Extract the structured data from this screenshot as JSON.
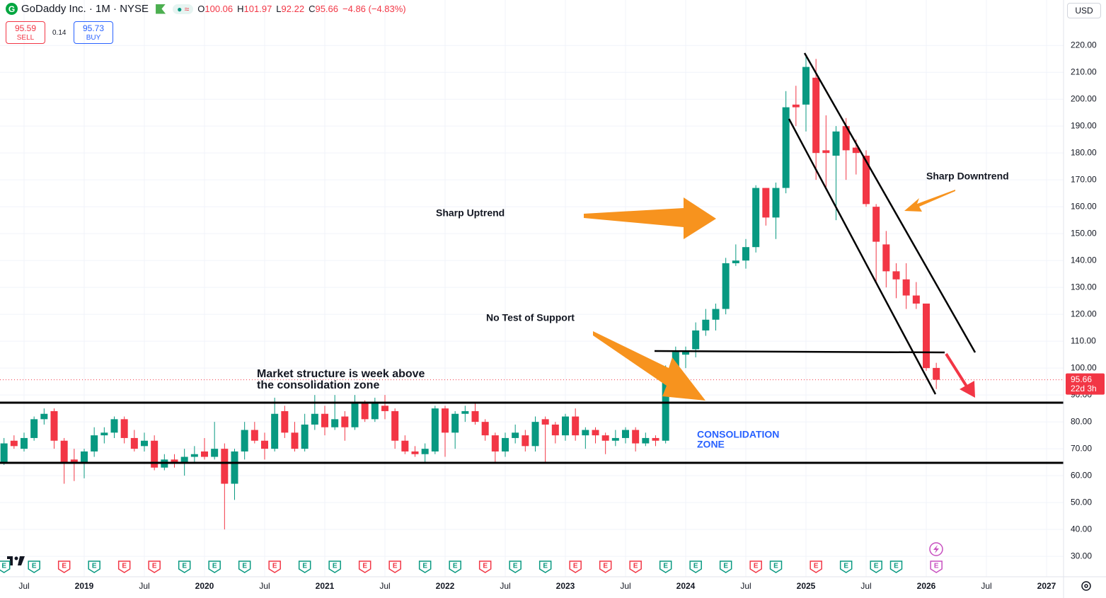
{
  "header": {
    "symbol": "GoDaddy Inc. · 1M · NYSE",
    "ohlc": [
      {
        "label": "O",
        "value": "100.06"
      },
      {
        "label": "H",
        "value": "101.97"
      },
      {
        "label": "L",
        "value": "92.22"
      },
      {
        "label": "C",
        "value": "95.66"
      }
    ],
    "change": "−4.86 (−4.83%)",
    "sell_price": "95.59",
    "sell_label": "SELL",
    "spread": "0.14",
    "buy_price": "95.73",
    "buy_label": "BUY",
    "currency": "USD"
  },
  "annotations": {
    "uptrend": "Sharp Uptrend",
    "downtrend": "Sharp Downtrend",
    "no_test": "No Test of Support",
    "structure": [
      "Market structure is week above",
      "the consolidation zone"
    ],
    "zone": [
      "CONSOLIDATION",
      "ZONE"
    ]
  },
  "chart_data": {
    "type": "candlestick",
    "up_color": "#089981",
    "down_color": "#f23645",
    "dates": [
      "2018-05",
      "2018-06",
      "2018-07",
      "2018-08",
      "2018-09",
      "2018-10",
      "2018-11",
      "2018-12",
      "2019-01",
      "2019-02",
      "2019-03",
      "2019-04",
      "2019-05",
      "2019-06",
      "2019-07",
      "2019-08",
      "2019-09",
      "2019-10",
      "2019-11",
      "2019-12",
      "2020-01",
      "2020-02",
      "2020-03",
      "2020-04",
      "2020-05",
      "2020-06",
      "2020-07",
      "2020-08",
      "2020-09",
      "2020-10",
      "2020-11",
      "2020-12",
      "2021-01",
      "2021-02",
      "2021-03",
      "2021-04",
      "2021-05",
      "2021-06",
      "2021-07",
      "2021-08",
      "2021-09",
      "2021-10",
      "2021-11",
      "2021-12",
      "2022-01",
      "2022-02",
      "2022-03",
      "2022-04",
      "2022-05",
      "2022-06",
      "2022-07",
      "2022-08",
      "2022-09",
      "2022-10",
      "2022-11",
      "2022-12",
      "2023-01",
      "2023-02",
      "2023-03",
      "2023-04",
      "2023-05",
      "2023-06",
      "2023-07",
      "2023-08",
      "2023-09",
      "2023-10",
      "2023-11",
      "2023-12",
      "2024-01",
      "2024-02",
      "2024-03",
      "2024-04",
      "2024-05",
      "2024-06",
      "2024-07",
      "2024-08",
      "2024-09",
      "2024-10",
      "2024-11",
      "2024-12",
      "2025-01",
      "2025-02",
      "2025-03",
      "2025-04",
      "2025-05",
      "2025-06",
      "2025-07",
      "2025-08",
      "2025-09",
      "2025-10",
      "2025-11",
      "2025-12",
      "2026-01",
      "2026-02"
    ],
    "open": [
      65,
      73,
      70,
      74,
      81,
      84,
      73,
      66,
      65,
      69,
      75,
      76,
      81,
      74,
      71,
      73,
      63,
      66,
      65,
      67,
      69,
      67,
      70,
      57,
      69,
      77,
      73,
      70,
      84,
      76,
      70,
      79,
      83,
      78,
      82,
      78,
      87,
      81,
      86,
      84,
      73,
      69,
      68,
      69,
      85,
      76,
      83,
      84,
      80,
      75,
      69,
      74,
      75,
      71,
      81,
      79,
      75,
      82,
      75,
      77,
      75,
      73,
      74,
      77,
      72,
      74,
      73,
      100,
      105,
      107,
      114,
      118,
      122,
      139,
      140,
      145,
      167,
      156,
      167,
      198,
      198,
      208,
      181,
      179,
      190,
      182,
      179,
      160,
      146,
      136,
      133,
      127,
      124,
      100.06
    ],
    "high": [
      74,
      75,
      76,
      82,
      85,
      85,
      74,
      70,
      70,
      78,
      78,
      82,
      82,
      77,
      76,
      75,
      68,
      68,
      70,
      71,
      74,
      80,
      72,
      70,
      80,
      80,
      76,
      89,
      86,
      80,
      83,
      90,
      86,
      90,
      84,
      90,
      88,
      89,
      90,
      85,
      75,
      71,
      72,
      86,
      86,
      84,
      86,
      87,
      81,
      76,
      76,
      79,
      77,
      82,
      82,
      80,
      83,
      85,
      78,
      78,
      76,
      77,
      78,
      78,
      76,
      75,
      101,
      108,
      108,
      117,
      122,
      124,
      141,
      146,
      148,
      168,
      167,
      169,
      203,
      205,
      216,
      215,
      194,
      190,
      193,
      185,
      181,
      161,
      151,
      139,
      139,
      132,
      124,
      101.97
    ],
    "low": [
      64,
      70,
      69,
      73,
      79,
      70,
      57,
      58,
      59,
      67,
      72,
      74,
      72,
      69,
      69,
      62,
      62,
      63,
      60,
      65,
      66,
      66,
      40,
      51,
      66,
      72,
      66,
      69,
      74,
      69,
      69,
      77,
      75,
      77,
      73,
      77,
      80,
      80,
      81,
      70,
      68,
      67,
      65,
      68,
      67,
      70,
      80,
      79,
      73,
      65,
      67,
      72,
      69,
      69,
      65,
      72,
      73,
      73,
      70,
      72,
      68,
      71,
      72,
      69,
      71,
      71,
      72,
      98,
      100,
      104,
      112,
      114,
      120,
      138,
      137,
      143,
      153,
      148,
      165,
      190,
      188,
      170,
      167,
      155,
      170,
      172,
      160,
      132,
      130,
      126,
      122,
      122,
      99,
      92.22
    ],
    "close": [
      72,
      71,
      74,
      81,
      83,
      73,
      65,
      65,
      69,
      75,
      76,
      81,
      74,
      70,
      73,
      63,
      66,
      65,
      67,
      68,
      67,
      70,
      57,
      69,
      77,
      73,
      70,
      83,
      76,
      70,
      79,
      83,
      78,
      81,
      78,
      87,
      81,
      87,
      84,
      73,
      69,
      68,
      70,
      85,
      76,
      83,
      84,
      80,
      75,
      69,
      74,
      76,
      71,
      80,
      79,
      75,
      82,
      75,
      77,
      75,
      73,
      74,
      77,
      72,
      74,
      73,
      100,
      106,
      106,
      114,
      118,
      122,
      139,
      140,
      145,
      167,
      156,
      167,
      197,
      197,
      212,
      180,
      180,
      188,
      181,
      180,
      161,
      147,
      136,
      133,
      127,
      124,
      100,
      95.66
    ],
    "ylim": [
      22.4,
      229
    ],
    "yticks": [
      {
        "value": 30,
        "label": "30.00"
      },
      {
        "value": 40,
        "label": "40.00"
      },
      {
        "value": 50,
        "label": "50.00"
      },
      {
        "value": 60,
        "label": "60.00"
      },
      {
        "value": 70,
        "label": "70.00"
      },
      {
        "value": 80,
        "label": "80.00"
      },
      {
        "value": 90,
        "label": "90.00"
      },
      {
        "value": 100,
        "label": "100.00"
      },
      {
        "value": 110,
        "label": "110.00"
      },
      {
        "value": 120,
        "label": "120.00"
      },
      {
        "value": 130,
        "label": "130.00"
      },
      {
        "value": 140,
        "label": "140.00"
      },
      {
        "value": 150,
        "label": "150.00"
      },
      {
        "value": 160,
        "label": "160.00"
      },
      {
        "value": 170,
        "label": "170.00"
      },
      {
        "value": 180,
        "label": "180.00"
      },
      {
        "value": 190,
        "label": "190.00"
      },
      {
        "value": 200,
        "label": "200.00"
      },
      {
        "value": 210,
        "label": "210.00"
      },
      {
        "value": 220,
        "label": "220.00"
      }
    ],
    "xticks": [
      {
        "value": "2018-07",
        "label": "Jul"
      },
      {
        "value": "2019-01",
        "label": "2019"
      },
      {
        "value": "2019-07",
        "label": "Jul"
      },
      {
        "value": "2020-01",
        "label": "2020"
      },
      {
        "value": "2020-07",
        "label": "Jul"
      },
      {
        "value": "2021-01",
        "label": "2021"
      },
      {
        "value": "2021-07",
        "label": "Jul"
      },
      {
        "value": "2022-01",
        "label": "2022"
      },
      {
        "value": "2022-07",
        "label": "Jul"
      },
      {
        "value": "2023-01",
        "label": "2023"
      },
      {
        "value": "2023-07",
        "label": "Jul"
      },
      {
        "value": "2024-01",
        "label": "2024"
      },
      {
        "value": "2024-07",
        "label": "Jul"
      },
      {
        "value": "2025-01",
        "label": "2025"
      },
      {
        "value": "2025-07",
        "label": "Jul"
      },
      {
        "value": "2026-01",
        "label": "2026"
      },
      {
        "value": "2026-07",
        "label": "Jul"
      },
      {
        "value": "2027-01",
        "label": "2027"
      }
    ],
    "grid": true,
    "last_price": {
      "value": 95.66,
      "label": "95.66",
      "countdown": "22d 3h",
      "color": "#f23645"
    },
    "events": {
      "label": "E",
      "dates": [
        "2018-05",
        "2018-08",
        "2018-11",
        "2019-02",
        "2019-05",
        "2019-08",
        "2019-11",
        "2020-02",
        "2020-05",
        "2020-08",
        "2020-11",
        "2021-02",
        "2021-05",
        "2021-08",
        "2021-11",
        "2022-02",
        "2022-05",
        "2022-08",
        "2022-11",
        "2023-02",
        "2023-05",
        "2023-08",
        "2023-11",
        "2024-02",
        "2024-05",
        "2024-08",
        "2024-10",
        "2025-02",
        "2025-05",
        "2025-08",
        "2025-10",
        "2026-02"
      ],
      "colors": [
        "#089981",
        "#089981",
        "#f23645",
        "#089981",
        "#f23645",
        "#f23645",
        "#089981",
        "#089981",
        "#089981",
        "#f23645",
        "#089981",
        "#089981",
        "#f23645",
        "#f23645",
        "#089981",
        "#089981",
        "#f23645",
        "#089981",
        "#089981",
        "#f23645",
        "#f23645",
        "#f23645",
        "#089981",
        "#089981",
        "#089981",
        "#f23645",
        "#089981",
        "#f23645",
        "#089981",
        "#089981",
        "#089981",
        "#c850c0"
      ]
    }
  }
}
